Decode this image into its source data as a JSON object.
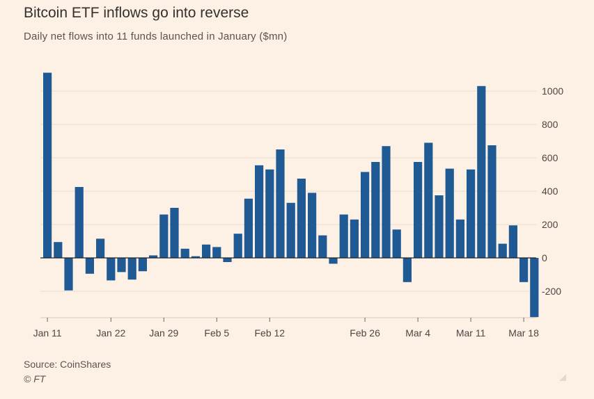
{
  "title": "Bitcoin ETF inflows go into reverse",
  "subtitle": "Daily net flows into 11 funds launched in January ($mn)",
  "source": "Source: CoinShares",
  "copyright": "© FT",
  "colors": {
    "background": "#fdf1e5",
    "bar": "#1f5a94",
    "grid": "#e9ddd0",
    "zero_line": "#222222"
  },
  "chart_data": {
    "type": "bar",
    "title": "Bitcoin ETF inflows go into reverse",
    "subtitle": "Daily net flows into 11 funds launched in January ($mn)",
    "xlabel": "",
    "ylabel": "",
    "ylim": [
      -350,
      1120
    ],
    "yticks": [
      1000,
      800,
      600,
      400,
      200,
      0,
      -200
    ],
    "ytick_labels": [
      "1000",
      "800",
      "600",
      "400",
      "200",
      "0",
      "-200"
    ],
    "y_axis_side": "right",
    "grid": true,
    "xticks": [
      {
        "label": "Jan 11",
        "index": 0
      },
      {
        "label": "Jan 22",
        "index": 6
      },
      {
        "label": "Jan 29",
        "index": 11
      },
      {
        "label": "Feb 5",
        "index": 16
      },
      {
        "label": "Feb 12",
        "index": 21
      },
      {
        "label": "Feb 26",
        "index": 30
      },
      {
        "label": "Mar 4",
        "index": 35
      },
      {
        "label": "Mar 11",
        "index": 40
      },
      {
        "label": "Mar 18",
        "index": 45
      }
    ],
    "values": [
      1110,
      95,
      -195,
      425,
      -95,
      115,
      -135,
      -85,
      -130,
      -80,
      15,
      260,
      300,
      55,
      10,
      80,
      65,
      -25,
      145,
      355,
      555,
      530,
      650,
      330,
      475,
      390,
      135,
      -35,
      260,
      230,
      515,
      575,
      670,
      170,
      -145,
      575,
      690,
      375,
      535,
      230,
      530,
      1030,
      675,
      85,
      195,
      -145,
      -355
    ]
  }
}
